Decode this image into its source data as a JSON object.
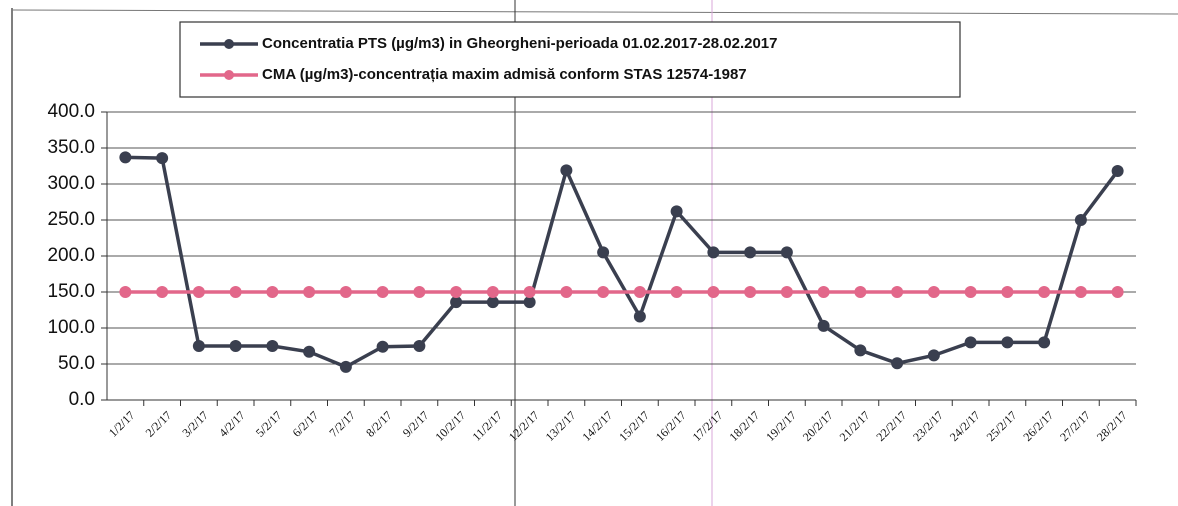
{
  "chart_data": {
    "type": "line",
    "categories": [
      "1/2/17",
      "2/2/17",
      "3/2/17",
      "4/2/17",
      "5/2/17",
      "6/2/17",
      "7/2/17",
      "8/2/17",
      "9/2/17",
      "10/2/17",
      "11/2/17",
      "12/2/17",
      "13/2/17",
      "14/2/17",
      "15/2/17",
      "16/2/17",
      "17/2/17",
      "18/2/17",
      "19/2/17",
      "20/2/17",
      "21/2/17",
      "22/2/17",
      "23/2/17",
      "24/2/17",
      "25/2/17",
      "26/2/17",
      "27/2/17",
      "28/2/17"
    ],
    "series": [
      {
        "name": "Concentratia PTS (µg/m3) in Gheorgheni-perioada 01.02.2017-28.02.2017",
        "color": "#3a3f4f",
        "values": [
          337,
          336,
          75,
          75,
          75,
          67,
          46,
          74,
          75,
          136,
          136,
          136,
          319,
          205,
          116,
          262,
          205,
          205,
          205,
          103,
          69,
          51,
          62,
          80,
          80,
          80,
          250,
          318
        ]
      },
      {
        "name": "CMA (µg/m3)-concentrația maxim admisă conform STAS 12574-1987",
        "color": "#e2678a",
        "values": [
          150,
          150,
          150,
          150,
          150,
          150,
          150,
          150,
          150,
          150,
          150,
          150,
          150,
          150,
          150,
          150,
          150,
          150,
          150,
          150,
          150,
          150,
          150,
          150,
          150,
          150,
          150,
          150
        ]
      }
    ],
    "ylim": [
      0,
      400
    ],
    "yticks": [
      {
        "value": 0,
        "label": "0.0"
      },
      {
        "value": 50,
        "label": "50.0"
      },
      {
        "value": 100,
        "label": "100.0"
      },
      {
        "value": 150,
        "label": "150.0"
      },
      {
        "value": 200,
        "label": "200.0"
      },
      {
        "value": 250,
        "label": "250.0"
      },
      {
        "value": 300,
        "label": "300.0"
      },
      {
        "value": 350,
        "label": "350.0"
      },
      {
        "value": 400,
        "label": "400.0"
      }
    ],
    "grid": true
  }
}
